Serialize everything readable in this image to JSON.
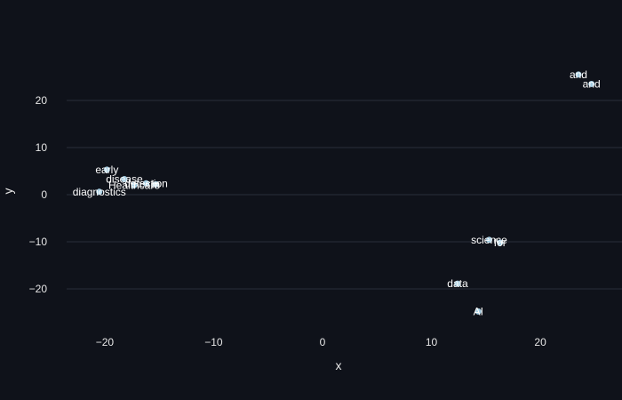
{
  "chart_data": {
    "type": "scatter",
    "title": "",
    "xlabel": "x",
    "ylabel": "y",
    "xlim": [
      -23.5,
      27.5
    ],
    "ylim": [
      -28.5,
      30
    ],
    "xticks": [
      -20,
      -10,
      0,
      10,
      20
    ],
    "yticks": [
      -20,
      -10,
      0,
      10,
      20
    ],
    "tick_labels": {
      "x": [
        "−20",
        "−10",
        "0",
        "10",
        "20"
      ],
      "y": [
        "−20",
        "−10",
        "0",
        "10",
        "20"
      ]
    },
    "grid": true,
    "marker_color": "#a6cee3",
    "points": [
      {
        "label": "and",
        "x": 23.5,
        "y": 25.5
      },
      {
        "label": "and",
        "x": 24.7,
        "y": 23.5
      },
      {
        "label": "early",
        "x": -19.8,
        "y": 5.3
      },
      {
        "label": "disease",
        "x": -18.2,
        "y": 3.3
      },
      {
        "label": "Healthcare",
        "x": -17.3,
        "y": 2.0
      },
      {
        "label": "detection",
        "x": -16.2,
        "y": 2.4
      },
      {
        "label": "in",
        "x": -15.3,
        "y": 2.2
      },
      {
        "label": "diagnostics",
        "x": -20.5,
        "y": 0.6
      },
      {
        "label": "science",
        "x": 15.3,
        "y": -9.6
      },
      {
        "label": "for",
        "x": 16.3,
        "y": -10.2
      },
      {
        "label": "data",
        "x": 12.4,
        "y": -18.9
      },
      {
        "label": "AI",
        "x": 14.3,
        "y": -24.8
      }
    ]
  }
}
